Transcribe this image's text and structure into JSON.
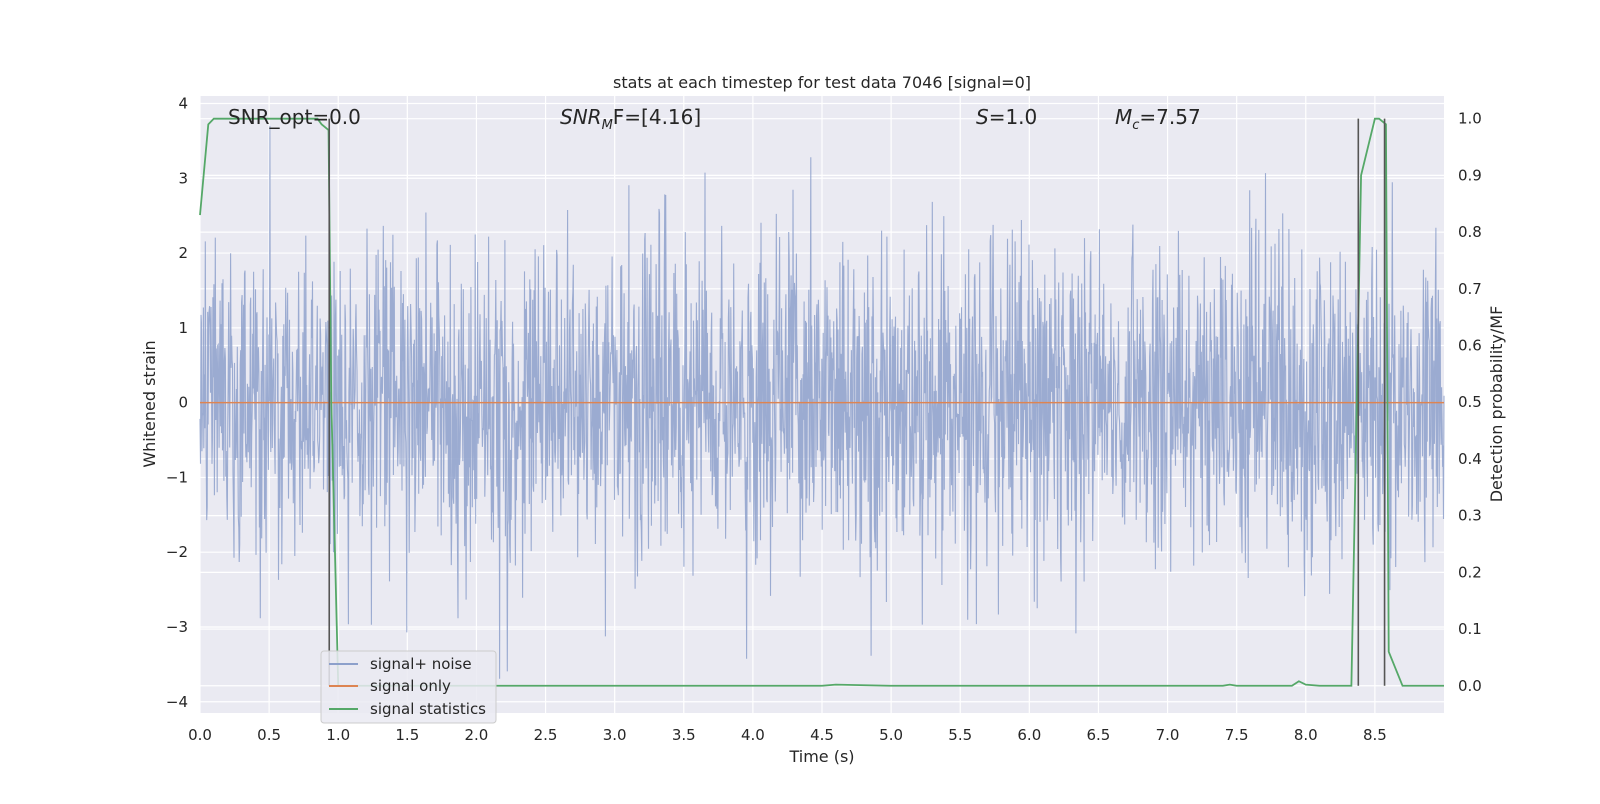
{
  "chart_data": {
    "type": "line",
    "title": "stats at each timestep for test data 7046 [signal=0]",
    "xlabel": "Time (s)",
    "ylabel_left": "Whitened strain",
    "ylabel_right": "Detection probability/MF",
    "xlim": [
      0.0,
      9.0
    ],
    "ylim_left": [
      -4.15,
      4.1
    ],
    "ylim_right": [
      -0.048,
      1.04
    ],
    "x_ticks": [
      "0.0",
      "0.5",
      "1.0",
      "1.5",
      "2.0",
      "2.5",
      "3.0",
      "3.5",
      "4.0",
      "4.5",
      "5.0",
      "5.5",
      "6.0",
      "6.5",
      "7.0",
      "7.5",
      "8.0",
      "8.5"
    ],
    "y_ticks_left": [
      "4",
      "3",
      "2",
      "1",
      "0",
      "−1",
      "−2",
      "−3",
      "−4"
    ],
    "y_ticks_right": [
      "1.0",
      "0.9",
      "0.8",
      "0.7",
      "0.6",
      "0.5",
      "0.4",
      "0.3",
      "0.2",
      "0.1",
      "0.0"
    ],
    "grid": true,
    "annotations": {
      "snr_opt": "SNR_opt=0.0",
      "snr_mf_sym": "SNR",
      "snr_mf_sub": "M",
      "snr_mf_rest": "F=[4.16]",
      "s_sym": "S",
      "s_rest": "=1.0",
      "mc_sym": "M",
      "mc_sub": "c",
      "mc_rest": "=7.57"
    },
    "legend": {
      "position": "lower-left",
      "items": [
        "signal+ noise",
        "signal only",
        "signal statistics"
      ]
    },
    "colors": {
      "noise": "#8da0cb",
      "signal": "#dd8452",
      "stats": "#55a868",
      "vlines": "#555555",
      "background": "#eaeaf2",
      "grid": "#ffffff"
    },
    "series": [
      {
        "name": "signal only",
        "axis": "left",
        "x": [
          0.0,
          9.0
        ],
        "y": [
          0.0,
          0.0
        ]
      },
      {
        "name": "signal statistics",
        "axis": "right",
        "x": [
          0.0,
          0.06,
          0.1,
          0.2,
          0.4,
          0.6,
          0.85,
          0.88,
          0.93,
          0.95,
          1.0,
          1.5,
          2.0,
          3.0,
          4.0,
          4.5,
          4.6,
          5.0,
          6.0,
          7.0,
          7.4,
          7.45,
          7.5,
          7.9,
          7.95,
          8.0,
          8.1,
          8.3,
          8.33,
          8.4,
          8.5,
          8.53,
          8.58,
          8.6,
          8.7,
          8.8,
          9.0
        ],
        "y": [
          0.83,
          0.99,
          1.0,
          1.0,
          1.0,
          1.0,
          1.0,
          0.99,
          0.98,
          0.5,
          0.0,
          0.0,
          0.0,
          0.0,
          0.0,
          0.0,
          0.002,
          0.0,
          0.0,
          0.0,
          0.0,
          0.002,
          0.0,
          0.0,
          0.008,
          0.002,
          0.0,
          0.0,
          0.0,
          0.9,
          1.0,
          1.0,
          0.99,
          0.06,
          0.0,
          0.0,
          0.0
        ]
      },
      {
        "name": "signal+ noise",
        "axis": "left",
        "note": "whitened strain noise envelope",
        "amplitude_typical": 1.4,
        "amplitude_peak": 3.7
      }
    ],
    "vertical_markers": [
      {
        "x": 0.935,
        "y": [
          0.0,
          1.0
        ]
      },
      {
        "x": 8.38,
        "y": [
          0.0,
          1.0
        ]
      },
      {
        "x": 8.57,
        "y": [
          0.0,
          1.0
        ]
      }
    ]
  }
}
